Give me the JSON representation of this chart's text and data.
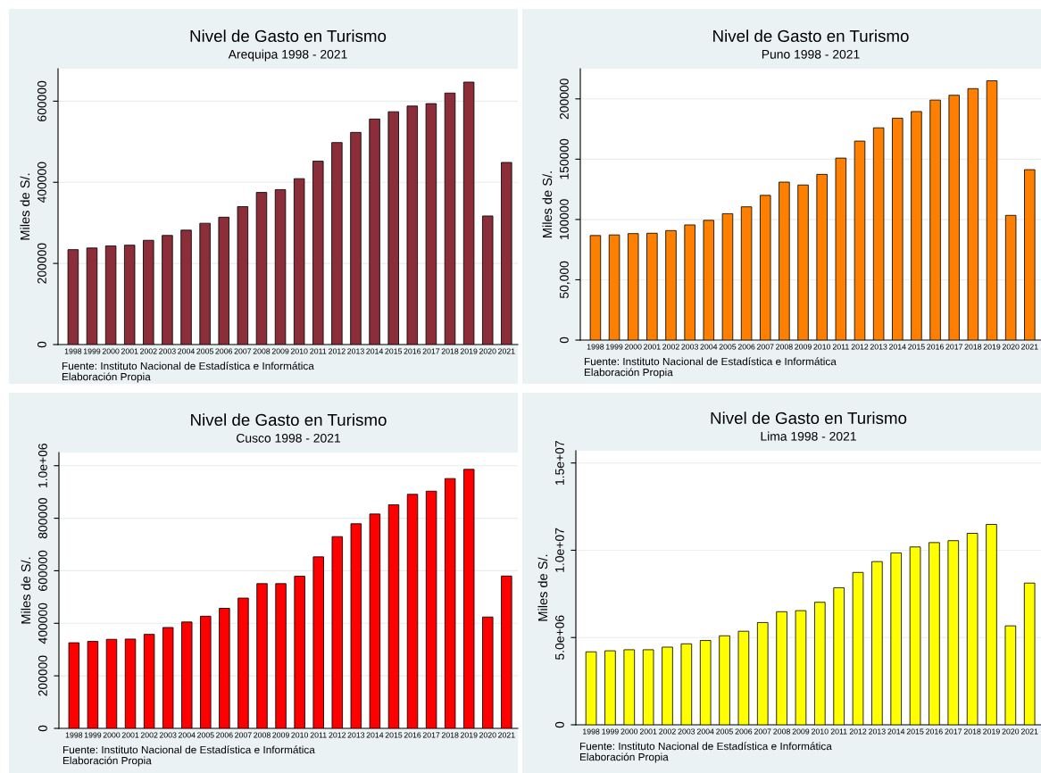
{
  "chart_data": [
    {
      "type": "bar",
      "title": "Nivel de Gasto en Turismo",
      "subtitle": "Arequipa 1998 - 2021",
      "ylabel": "Miles de S/.",
      "categories": [
        "1998",
        "1999",
        "2000",
        "2001",
        "2002",
        "2003",
        "2004",
        "2005",
        "2006",
        "2007",
        "2008",
        "2009",
        "2010",
        "2011",
        "2012",
        "2013",
        "2014",
        "2015",
        "2016",
        "2017",
        "2018",
        "2019",
        "2020",
        "2021"
      ],
      "values": [
        234000,
        238000,
        243000,
        245000,
        257000,
        269000,
        282000,
        299000,
        314000,
        340000,
        375000,
        382000,
        409000,
        452000,
        498000,
        523000,
        556000,
        574000,
        588000,
        594000,
        620000,
        647000,
        317000,
        449000
      ],
      "color": "#8b2e3a",
      "ylim": [
        0,
        680000
      ],
      "yticks": [
        0,
        200000,
        400000,
        600000
      ],
      "grid": "y",
      "annotations": [
        "Fuente: Instituto Nacional de Estadística e Informática",
        "Elaboración Propia"
      ]
    },
    {
      "type": "bar",
      "title": "Nivel de Gasto en Turismo",
      "subtitle": "Puno 1998 - 2021",
      "ylabel": "Miles de S/.",
      "categories": [
        "1998",
        "1999",
        "2000",
        "2001",
        "2002",
        "2003",
        "2004",
        "2005",
        "2006",
        "2007",
        "2008",
        "2009",
        "2010",
        "2011",
        "2012",
        "2013",
        "2014",
        "2015",
        "2016",
        "2017",
        "2018",
        "2019",
        "2020",
        "2021"
      ],
      "values": [
        86700,
        87200,
        88300,
        88600,
        90800,
        95500,
        99300,
        104800,
        110500,
        120000,
        131000,
        128600,
        137400,
        150900,
        165000,
        176000,
        184000,
        189500,
        199000,
        203000,
        208500,
        215000,
        103400,
        141300
      ],
      "color": "#ff8000",
      "ylim": [
        0,
        225000
      ],
      "yticks": [
        0,
        {
          "value": 50000,
          "label": "50,000"
        },
        100000,
        150000,
        200000
      ],
      "grid": "y",
      "annotations": [
        "Fuente: Instituto Nacional de Estadística e Informática",
        "Elaboración Propia"
      ]
    },
    {
      "type": "bar",
      "title": "Nivel de Gasto en Turismo",
      "subtitle": "Cusco 1998 - 2021",
      "ylabel": "Miles de S/.",
      "categories": [
        "1998",
        "1999",
        "2000",
        "2001",
        "2002",
        "2003",
        "2004",
        "2005",
        "2006",
        "2007",
        "2008",
        "2009",
        "2010",
        "2011",
        "2012",
        "2013",
        "2014",
        "2015",
        "2016",
        "2017",
        "2018",
        "2019",
        "2020",
        "2021"
      ],
      "values": [
        326000,
        331000,
        339000,
        340000,
        358000,
        384000,
        405000,
        427000,
        457000,
        496000,
        551000,
        551000,
        579000,
        653000,
        730000,
        779000,
        816000,
        851000,
        891000,
        903000,
        951000,
        986000,
        424000,
        580000
      ],
      "color": "#ff0000",
      "ylim": [
        0,
        1050000
      ],
      "yticks": [
        0,
        200000,
        400000,
        600000,
        800000,
        {
          "value": 1000000,
          "label": "1.0e+06"
        }
      ],
      "grid": "y",
      "annotations": [
        "Fuente: Instituto Nacional de Estadística e Informática",
        "Elaboración Propia"
      ]
    },
    {
      "type": "bar",
      "title": "Nivel de Gasto en Turismo",
      "subtitle": "Lima 1998 - 2021",
      "ylabel": "Miles de S/.",
      "categories": [
        "1998",
        "1999",
        "2000",
        "2001",
        "2002",
        "2003",
        "2004",
        "2005",
        "2006",
        "2007",
        "2008",
        "2009",
        "2010",
        "2011",
        "2012",
        "2013",
        "2014",
        "2015",
        "2016",
        "2017",
        "2018",
        "2019",
        "2020",
        "2021"
      ],
      "values": [
        4180000,
        4240000,
        4300000,
        4300000,
        4450000,
        4640000,
        4830000,
        5100000,
        5360000,
        5860000,
        6480000,
        6540000,
        7020000,
        7850000,
        8730000,
        9350000,
        9850000,
        10190000,
        10440000,
        10550000,
        10970000,
        11480000,
        5670000,
        8120000
      ],
      "color": "#ffff00",
      "ylim": [
        0,
        15700000
      ],
      "yticks": [
        0,
        {
          "value": 5000000,
          "label": "5.0e+06"
        },
        {
          "value": 10000000,
          "label": "1.0e+07"
        },
        {
          "value": 15000000,
          "label": "1.5e+07"
        }
      ],
      "grid": "y",
      "annotations": [
        "Fuente: Instituto Nacional de Estadística e Informática",
        "Elaboración Propia"
      ]
    }
  ]
}
